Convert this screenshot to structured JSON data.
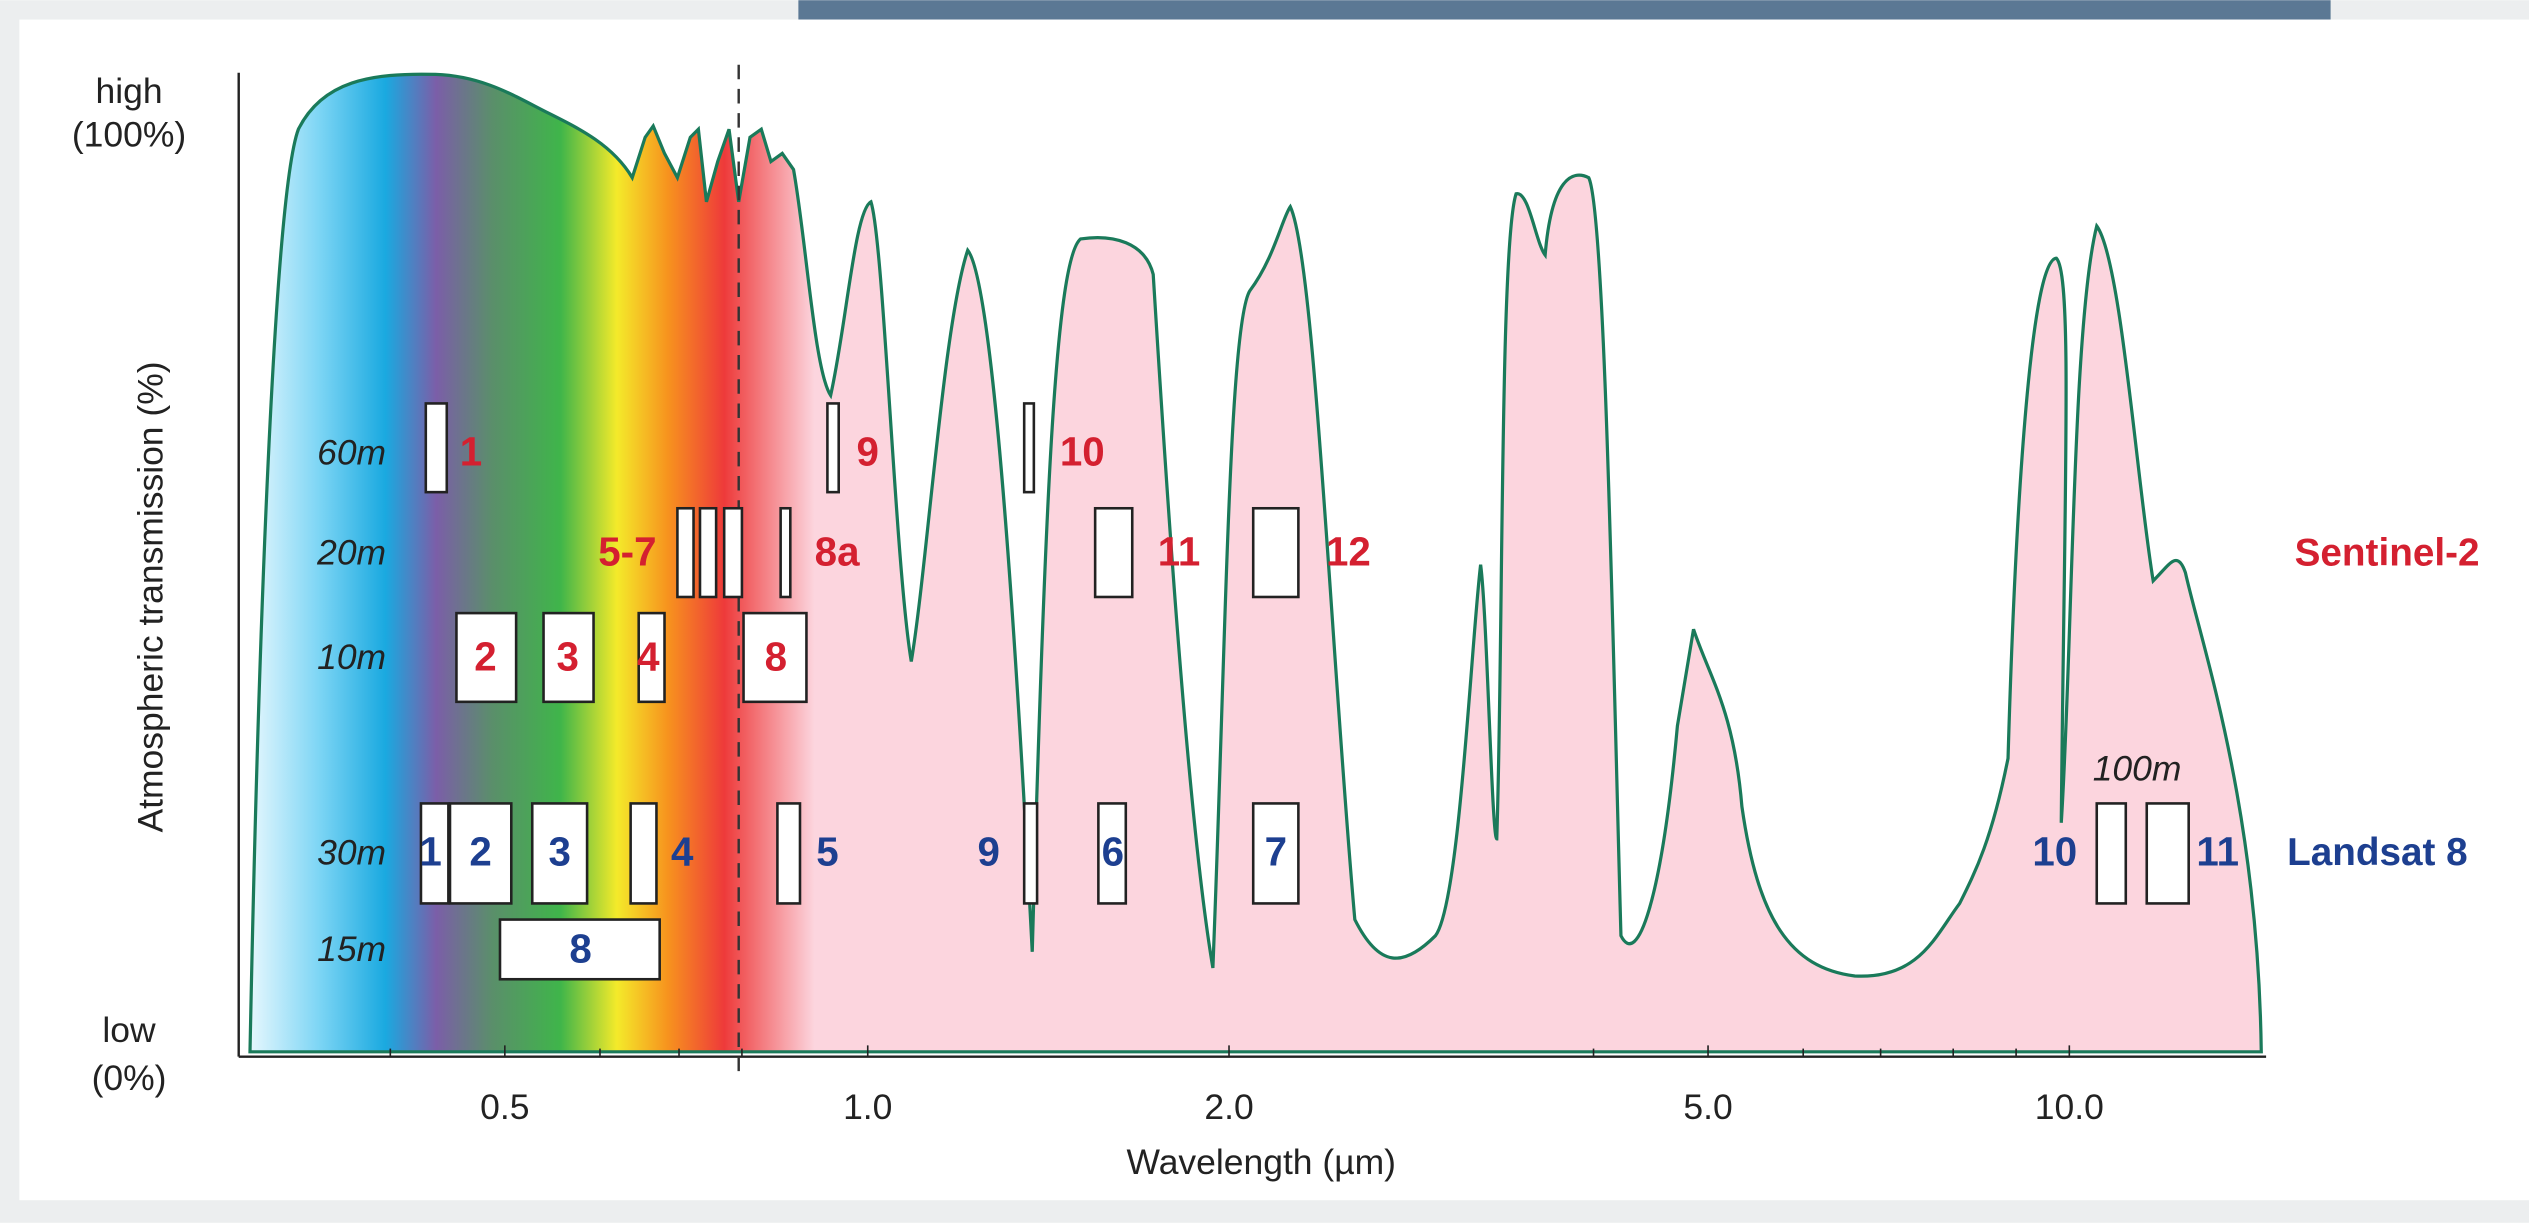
{
  "axis": {
    "y_title": "Atmospheric transmission (%)",
    "y_high": "high",
    "y_high_pct": "(100%)",
    "y_low": "low",
    "y_low_pct": "(0%)",
    "x_title": "Wavelength (µm)",
    "x_ticks": [
      "0.5",
      "1.0",
      "2.0",
      "5.0",
      "10.0"
    ]
  },
  "resolutions": [
    "60m",
    "20m",
    "10m",
    "30m",
    "15m",
    "100m"
  ],
  "sentinel": {
    "name": "Sentinel-2",
    "bands": [
      "1",
      "9",
      "10",
      "5-7",
      "8a",
      "11",
      "12",
      "2",
      "3",
      "4",
      "8"
    ]
  },
  "landsat": {
    "name": "Landsat 8",
    "bands": [
      "1",
      "2",
      "3",
      "4",
      "5",
      "9",
      "6",
      "7",
      "10",
      "11",
      "8"
    ]
  }
}
